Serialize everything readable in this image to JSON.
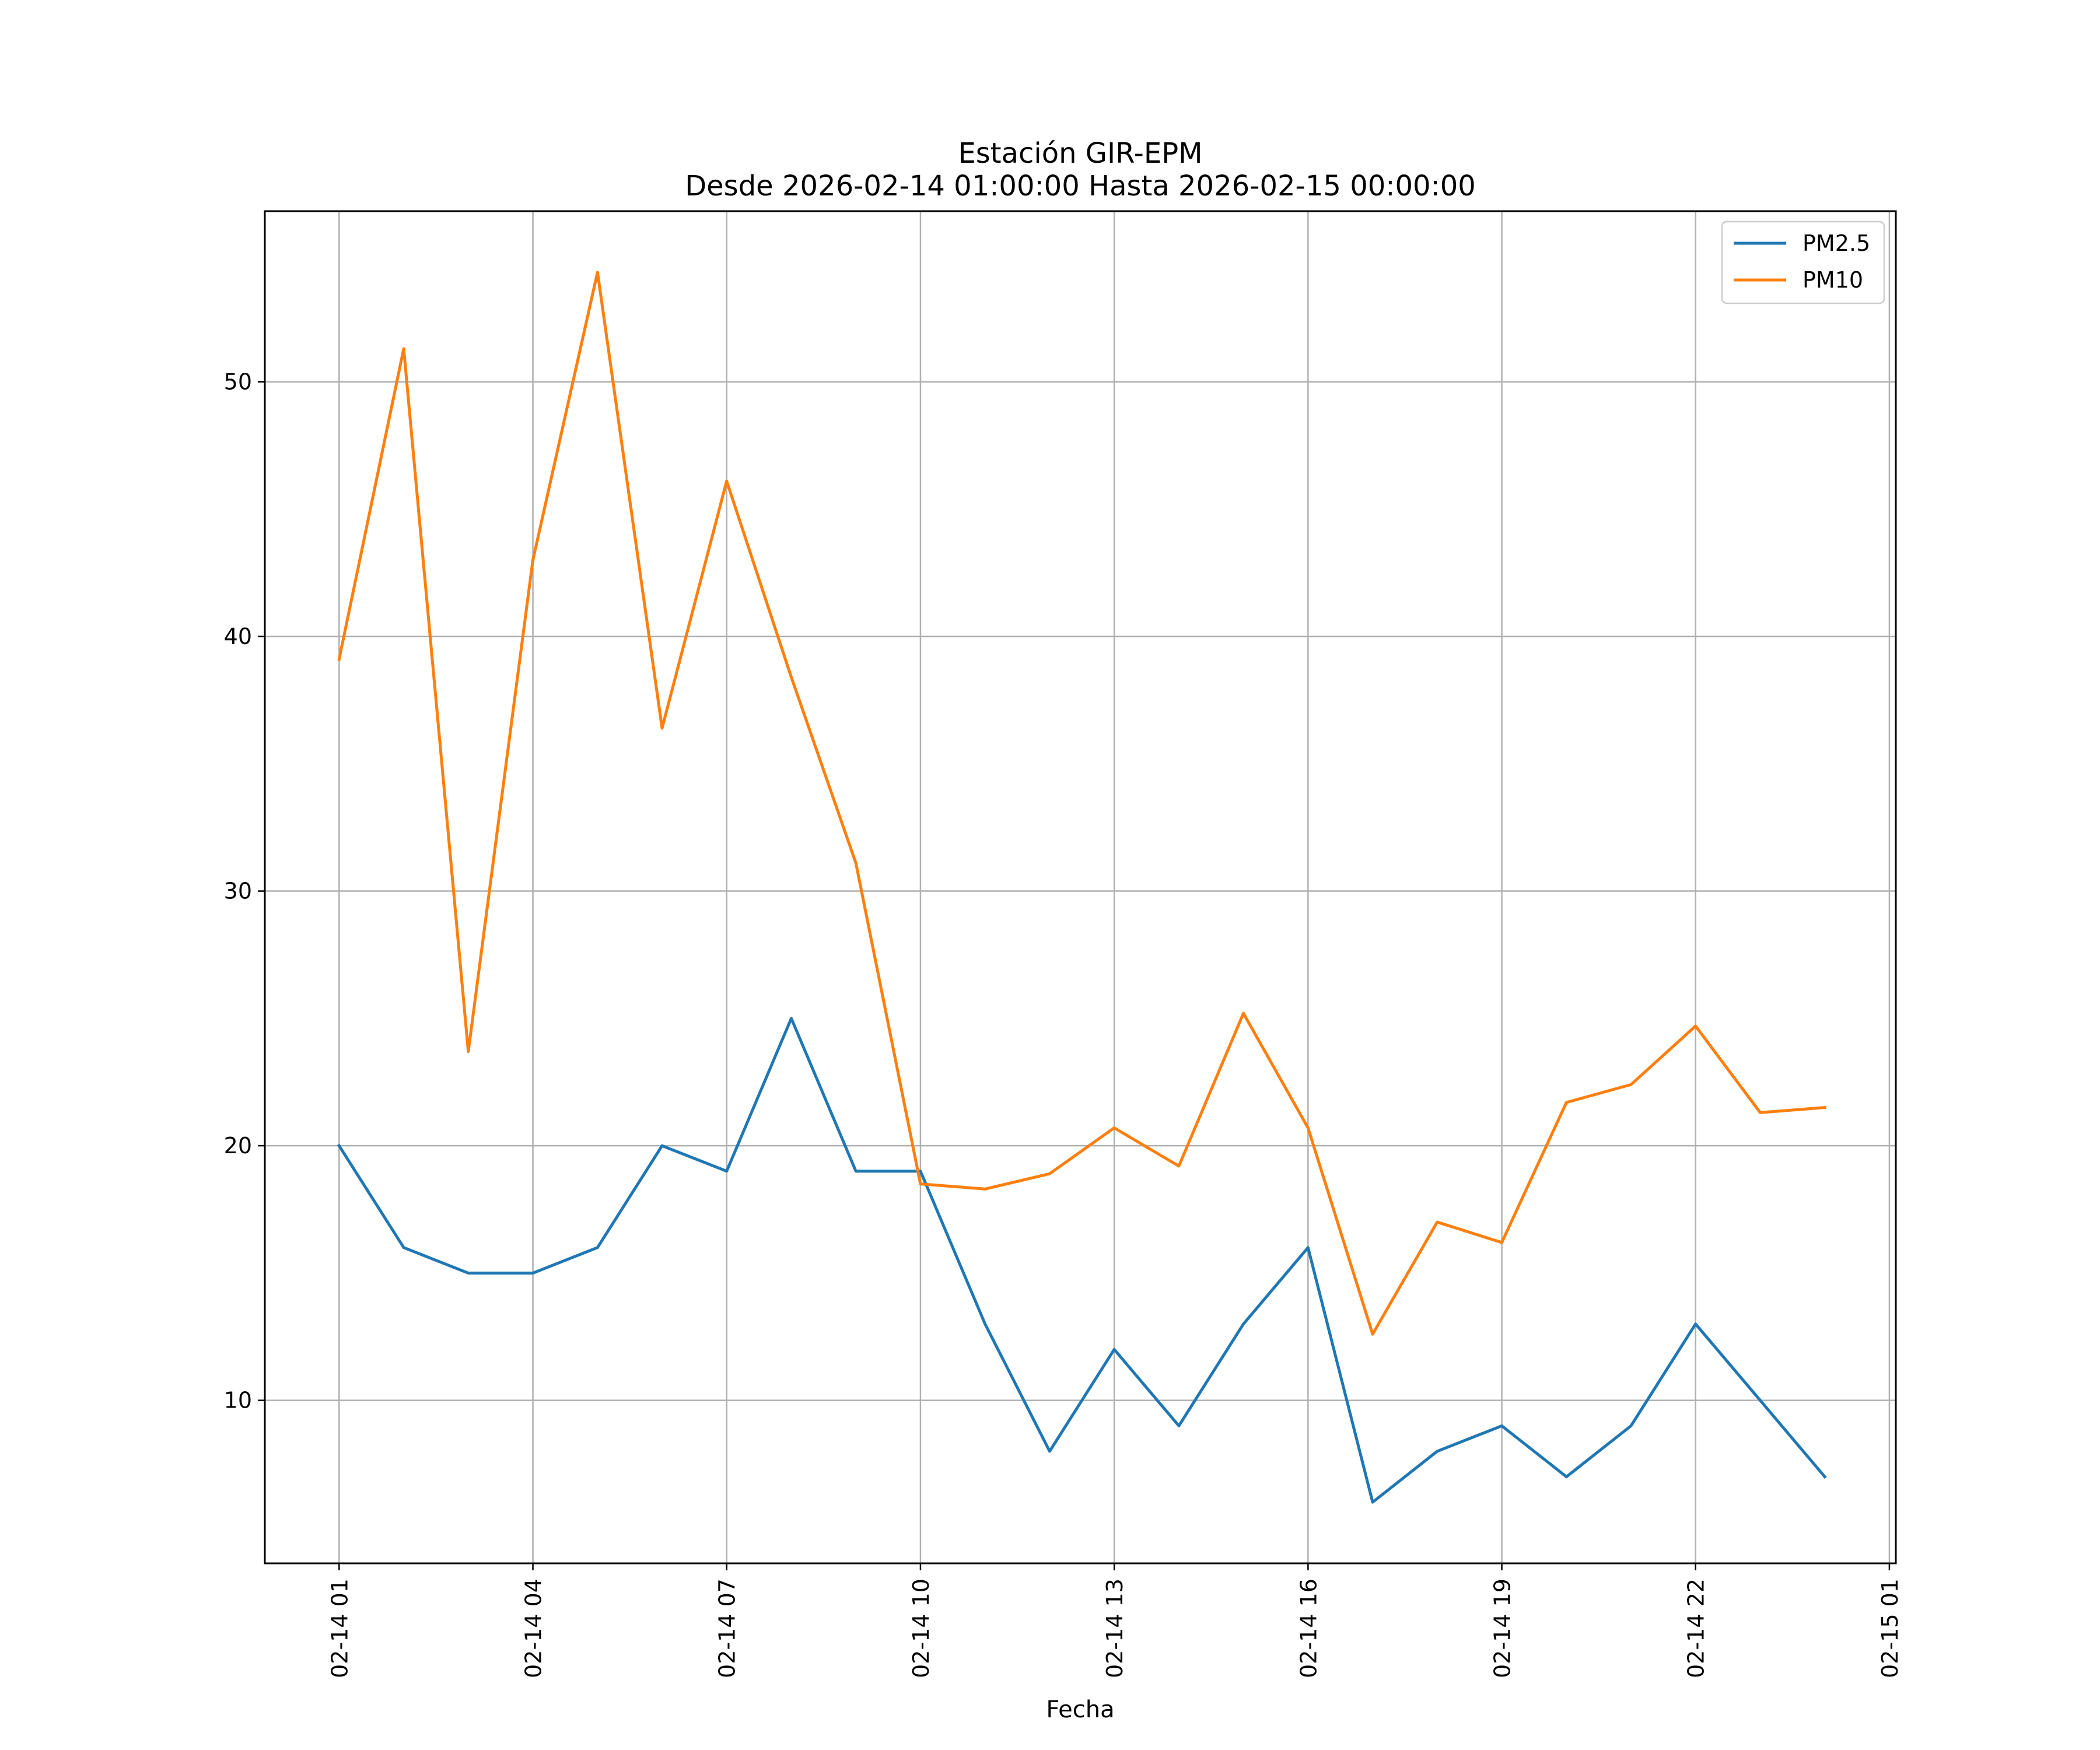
{
  "chart_data": {
    "type": "line",
    "title": "Estación GIR-EPM",
    "subtitle": "Desde 2026-02-14 01:00:00 Hasta 2026-02-15 00:00:00",
    "xlabel": "Fecha",
    "ylabel": "",
    "x": [
      "02-14 01",
      "02-14 02",
      "02-14 03",
      "02-14 04",
      "02-14 05",
      "02-14 06",
      "02-14 07",
      "02-14 08",
      "02-14 09",
      "02-14 10",
      "02-14 11",
      "02-14 12",
      "02-14 13",
      "02-14 14",
      "02-14 15",
      "02-14 16",
      "02-14 17",
      "02-14 18",
      "02-14 19",
      "02-14 20",
      "02-14 21",
      "02-14 22",
      "02-14 23",
      "02-15 00"
    ],
    "x_hours": [
      1,
      2,
      3,
      4,
      5,
      6,
      7,
      8,
      9,
      10,
      11,
      12,
      13,
      14,
      15,
      16,
      17,
      18,
      19,
      20,
      21,
      22,
      23,
      24
    ],
    "xticks": [
      {
        "hour": 1,
        "label": "02-14 01"
      },
      {
        "hour": 4,
        "label": "02-14 04"
      },
      {
        "hour": 7,
        "label": "02-14 07"
      },
      {
        "hour": 10,
        "label": "02-14 10"
      },
      {
        "hour": 13,
        "label": "02-14 13"
      },
      {
        "hour": 16,
        "label": "02-14 16"
      },
      {
        "hour": 19,
        "label": "02-14 19"
      },
      {
        "hour": 22,
        "label": "02-14 22"
      },
      {
        "hour": 25,
        "label": "02-15 01"
      }
    ],
    "xlim_hours": [
      -0.15,
      25.1
    ],
    "yticks": [
      10,
      20,
      30,
      40,
      50
    ],
    "ylim": [
      3.6,
      56.7
    ],
    "grid": true,
    "legend": "top-right",
    "series": [
      {
        "name": "PM2.5",
        "color": "#1f77b4",
        "values": [
          20,
          16,
          15,
          15,
          16,
          20,
          19,
          25,
          19,
          19,
          13,
          8,
          12,
          9,
          13,
          16,
          6,
          8,
          9,
          7,
          9,
          13,
          10,
          7
        ]
      },
      {
        "name": "PM10",
        "color": "#ff7f0e",
        "values": [
          39.1,
          51.3,
          23.7,
          43.0,
          54.3,
          36.4,
          46.1,
          38.4,
          31.1,
          18.5,
          18.3,
          18.9,
          20.7,
          19.2,
          25.2,
          20.7,
          12.6,
          17.0,
          16.2,
          21.7,
          22.4,
          24.7,
          21.3,
          21.5
        ]
      }
    ]
  }
}
